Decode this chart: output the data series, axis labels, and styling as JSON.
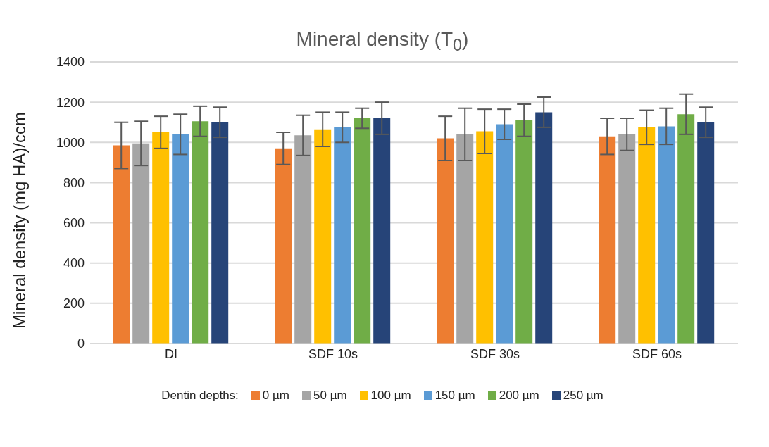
{
  "chart_data": {
    "type": "bar",
    "title": "Mineral density (T$_{0}$)",
    "ylabel": "Mineral density (mg HA)/ccm",
    "legend_title": "Dentin depths:",
    "categories": [
      "DI",
      "SDF 10s",
      "SDF 30s",
      "SDF 60s"
    ],
    "series": [
      {
        "name": "0 µm",
        "color": "#ed7d31",
        "values": [
          985,
          970,
          1020,
          1030
        ],
        "errors": [
          115,
          80,
          110,
          90
        ]
      },
      {
        "name": "50 µm",
        "color": "#a5a5a5",
        "values": [
          995,
          1035,
          1040,
          1040
        ],
        "errors": [
          110,
          100,
          130,
          80
        ]
      },
      {
        "name": "100 µm",
        "color": "#ffc000",
        "values": [
          1050,
          1065,
          1055,
          1075
        ],
        "errors": [
          80,
          85,
          110,
          85
        ]
      },
      {
        "name": "150 µm",
        "color": "#5b9bd5",
        "values": [
          1040,
          1075,
          1090,
          1080
        ],
        "errors": [
          100,
          75,
          75,
          90
        ]
      },
      {
        "name": "200 µm",
        "color": "#70ad47",
        "values": [
          1105,
          1120,
          1110,
          1140
        ],
        "errors": [
          75,
          50,
          80,
          100
        ]
      },
      {
        "name": "250 µm",
        "color": "#264478",
        "values": [
          1100,
          1120,
          1150,
          1100
        ],
        "errors": [
          75,
          80,
          75,
          75
        ]
      }
    ],
    "ylim": [
      0,
      1400
    ],
    "yticks": [
      0,
      200,
      400,
      600,
      800,
      1000,
      1200,
      1400
    ],
    "grid": "y",
    "legend": "bottom"
  }
}
